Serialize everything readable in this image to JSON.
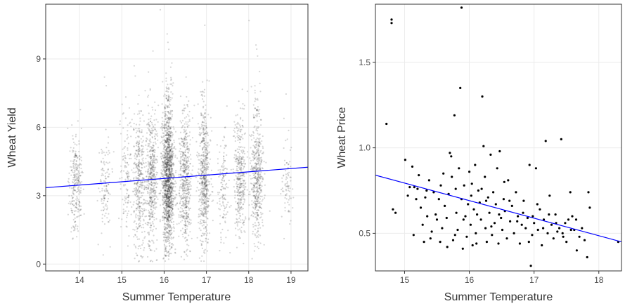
{
  "chart_data": [
    {
      "type": "scatter",
      "xlabel": "Summer Temperature",
      "ylabel": "Wheat Yield",
      "xlim": [
        13.2,
        19.4
      ],
      "ylim": [
        -0.3,
        11.4
      ],
      "xticks": [
        14,
        15,
        16,
        17,
        18,
        19
      ],
      "yticks": [
        0,
        3,
        6,
        9
      ],
      "xtick_labels": [
        "14",
        "15",
        "16",
        "17",
        "18",
        "19"
      ],
      "ytick_labels": [
        "0",
        "3",
        "6",
        "9"
      ],
      "grid": true,
      "point_color": "#000000",
      "point_opacity": 0.16,
      "clusters": [
        {
          "x": 13.9,
          "n": 260,
          "mean": 3.6,
          "sd": 1.15
        },
        {
          "x": 14.6,
          "n": 120,
          "mean": 3.4,
          "sd": 1.0
        },
        {
          "x": 15.1,
          "n": 120,
          "mean": 3.7,
          "sd": 1.3
        },
        {
          "x": 15.4,
          "n": 360,
          "mean": 3.6,
          "sd": 1.45
        },
        {
          "x": 15.7,
          "n": 480,
          "mean": 3.7,
          "sd": 1.45
        },
        {
          "x": 16.1,
          "n": 1400,
          "mean": 3.7,
          "sd": 1.55
        },
        {
          "x": 16.5,
          "n": 500,
          "mean": 3.6,
          "sd": 1.4
        },
        {
          "x": 16.95,
          "n": 560,
          "mean": 3.8,
          "sd": 1.5
        },
        {
          "x": 17.4,
          "n": 130,
          "mean": 3.3,
          "sd": 1.1
        },
        {
          "x": 17.8,
          "n": 360,
          "mean": 3.8,
          "sd": 1.3
        },
        {
          "x": 18.2,
          "n": 480,
          "mean": 3.6,
          "sd": 1.4
        },
        {
          "x": 18.9,
          "n": 80,
          "mean": 3.4,
          "sd": 0.9
        }
      ],
      "trend_line": {
        "x": [
          13.2,
          19.4
        ],
        "y": [
          3.35,
          4.25
        ],
        "color": "#0000ff"
      }
    },
    {
      "type": "scatter",
      "xlabel": "Summer Temperature",
      "ylabel": "Wheat Price",
      "xlim": [
        14.55,
        18.35
      ],
      "ylim": [
        0.28,
        1.84
      ],
      "xticks": [
        15,
        16,
        17,
        18
      ],
      "yticks": [
        0.5,
        1.0,
        1.5
      ],
      "xtick_labels": [
        "15",
        "16",
        "17",
        "18"
      ],
      "ytick_labels": [
        "0.5",
        "1.0",
        "1.5"
      ],
      "grid": true,
      "point_color": "#000000",
      "points": [
        [
          14.72,
          1.14
        ],
        [
          14.8,
          1.75
        ],
        [
          14.8,
          1.73
        ],
        [
          14.82,
          0.64
        ],
        [
          14.86,
          0.62
        ],
        [
          15.01,
          0.93
        ],
        [
          15.05,
          0.72
        ],
        [
          15.08,
          0.77
        ],
        [
          15.12,
          0.89
        ],
        [
          15.15,
          0.77
        ],
        [
          15.18,
          0.7
        ],
        [
          15.2,
          0.76
        ],
        [
          15.22,
          0.84
        ],
        [
          15.25,
          0.65
        ],
        [
          15.28,
          0.55
        ],
        [
          15.3,
          0.45
        ],
        [
          15.32,
          0.71
        ],
        [
          15.35,
          0.6
        ],
        [
          15.38,
          0.81
        ],
        [
          15.4,
          0.47
        ],
        [
          15.42,
          0.51
        ],
        [
          15.45,
          0.74
        ],
        [
          15.48,
          0.61
        ],
        [
          15.5,
          0.58
        ],
        [
          15.53,
          0.7
        ],
        [
          15.55,
          0.45
        ],
        [
          15.58,
          0.53
        ],
        [
          15.6,
          0.85
        ],
        [
          15.62,
          0.66
        ],
        [
          15.65,
          0.59
        ],
        [
          15.68,
          0.73
        ],
        [
          15.7,
          0.97
        ],
        [
          15.72,
          0.95
        ],
        [
          15.73,
          0.83
        ],
        [
          15.75,
          0.46
        ],
        [
          15.77,
          1.19
        ],
        [
          15.79,
          0.76
        ],
        [
          15.8,
          0.62
        ],
        [
          15.82,
          0.52
        ],
        [
          15.84,
          0.88
        ],
        [
          15.86,
          1.35
        ],
        [
          15.88,
          1.82
        ],
        [
          15.88,
          0.7
        ],
        [
          15.9,
          0.41
        ],
        [
          15.92,
          0.78
        ],
        [
          15.94,
          0.6
        ],
        [
          15.96,
          0.48
        ],
        [
          15.98,
          0.67
        ],
        [
          16.0,
          0.86
        ],
        [
          16.02,
          0.55
        ],
        [
          16.03,
          0.72
        ],
        [
          16.05,
          0.43
        ],
        [
          16.07,
          0.64
        ],
        [
          16.09,
          0.9
        ],
        [
          16.1,
          0.5
        ],
        [
          16.12,
          0.61
        ],
        [
          16.14,
          0.75
        ],
        [
          16.16,
          0.68
        ],
        [
          16.18,
          0.58
        ],
        [
          16.2,
          1.3
        ],
        [
          16.22,
          1.01
        ],
        [
          16.24,
          0.83
        ],
        [
          16.25,
          0.53
        ],
        [
          16.27,
          0.45
        ],
        [
          16.29,
          0.71
        ],
        [
          16.31,
          0.62
        ],
        [
          16.33,
          0.96
        ],
        [
          16.35,
          0.49
        ],
        [
          16.37,
          0.74
        ],
        [
          16.39,
          0.56
        ],
        [
          16.41,
          0.67
        ],
        [
          16.43,
          0.88
        ],
        [
          16.45,
          0.44
        ],
        [
          16.47,
          0.98
        ],
        [
          16.49,
          0.59
        ],
        [
          16.51,
          0.52
        ],
        [
          16.53,
          0.7
        ],
        [
          16.55,
          0.63
        ],
        [
          16.58,
          0.47
        ],
        [
          16.6,
          0.81
        ],
        [
          16.63,
          0.57
        ],
        [
          16.66,
          0.66
        ],
        [
          16.69,
          0.5
        ],
        [
          16.72,
          0.74
        ],
        [
          16.75,
          0.6
        ],
        [
          16.78,
          0.44
        ],
        [
          16.81,
          0.55
        ],
        [
          16.84,
          0.69
        ],
        [
          16.87,
          0.53
        ],
        [
          16.9,
          0.59
        ],
        [
          16.93,
          0.9
        ],
        [
          16.95,
          0.31
        ],
        [
          16.97,
          0.49
        ],
        [
          17.0,
          0.56
        ],
        [
          17.03,
          0.88
        ],
        [
          17.06,
          0.52
        ],
        [
          17.09,
          0.64
        ],
        [
          17.12,
          0.43
        ],
        [
          17.15,
          0.58
        ],
        [
          17.18,
          1.04
        ],
        [
          17.21,
          0.5
        ],
        [
          17.24,
          0.72
        ],
        [
          17.27,
          0.55
        ],
        [
          17.3,
          0.47
        ],
        [
          17.33,
          0.61
        ],
        [
          17.36,
          0.51
        ],
        [
          17.39,
          0.53
        ],
        [
          17.42,
          1.05
        ],
        [
          17.45,
          0.48
        ],
        [
          17.48,
          0.56
        ],
        [
          17.5,
          0.45
        ],
        [
          17.53,
          0.58
        ],
        [
          17.56,
          0.74
        ],
        [
          17.59,
          0.6
        ],
        [
          17.62,
          0.52
        ],
        [
          17.66,
          0.4
        ],
        [
          17.7,
          0.48
        ],
        [
          17.74,
          0.53
        ],
        [
          17.78,
          0.46
        ],
        [
          17.82,
          0.36
        ],
        [
          17.84,
          0.74
        ],
        [
          17.86,
          0.65
        ],
        [
          18.3,
          0.45
        ],
        [
          15.14,
          0.49
        ],
        [
          15.34,
          0.75
        ],
        [
          15.56,
          0.78
        ],
        [
          15.66,
          0.42
        ],
        [
          15.78,
          0.49
        ],
        [
          15.91,
          0.58
        ],
        [
          16.04,
          0.79
        ],
        [
          16.11,
          0.44
        ],
        [
          16.19,
          0.76
        ],
        [
          16.26,
          0.69
        ],
        [
          16.34,
          0.54
        ],
        [
          16.46,
          0.61
        ],
        [
          16.54,
          0.8
        ],
        [
          16.62,
          0.69
        ],
        [
          16.74,
          0.57
        ],
        [
          16.83,
          0.62
        ],
        [
          16.92,
          0.45
        ],
        [
          16.98,
          0.6
        ],
        [
          17.05,
          0.67
        ],
        [
          17.14,
          0.53
        ],
        [
          17.23,
          0.61
        ],
        [
          17.34,
          0.56
        ],
        [
          17.44,
          0.5
        ],
        [
          17.57,
          0.52
        ],
        [
          17.65,
          0.58
        ]
      ],
      "trend_line": {
        "x": [
          14.55,
          18.35
        ],
        "y": [
          0.84,
          0.45
        ],
        "color": "#0000ff"
      }
    }
  ]
}
